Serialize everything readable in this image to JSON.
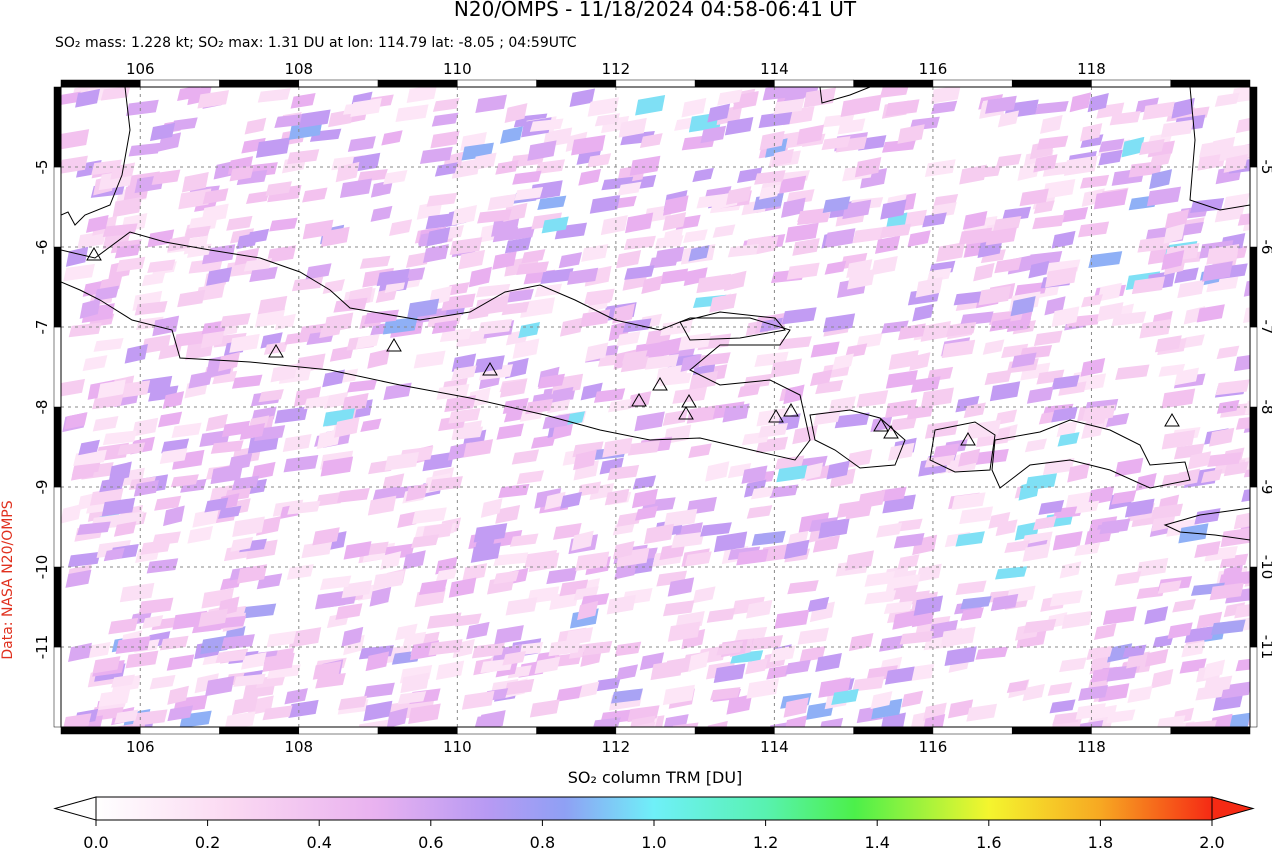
{
  "title": "N20/OMPS - 11/18/2024 04:58-06:41 UT",
  "subtitle": "SO₂ mass: 1.228 kt; SO₂ max: 1.31 DU at lon: 114.79 lat: -8.05 ; 04:59UTC",
  "side_label": "Data: NASA N20/OMPS",
  "map": {
    "xlim": [
      105,
      120
    ],
    "ylim": [
      -12,
      -4
    ],
    "xticks": [
      106,
      108,
      110,
      112,
      114,
      116,
      118
    ],
    "yticks": [
      -5,
      -6,
      -7,
      -8,
      -9,
      -10,
      -11
    ]
  },
  "colorbar": {
    "label": "SO₂ column TRM [DU]",
    "lim": [
      0,
      2
    ],
    "ticks": [
      {
        "value": 0,
        "label": "0.0"
      },
      {
        "value": 0.2,
        "label": "0.2"
      },
      {
        "value": 0.4,
        "label": "0.4"
      },
      {
        "value": 0.6,
        "label": "0.6"
      },
      {
        "value": 0.8,
        "label": "0.8"
      },
      {
        "value": 1,
        "label": "1.0"
      },
      {
        "value": 1.2,
        "label": "1.2"
      },
      {
        "value": 1.4,
        "label": "1.4"
      },
      {
        "value": 1.6,
        "label": "1.6"
      },
      {
        "value": 1.8,
        "label": "1.8"
      },
      {
        "value": 2,
        "label": "2.0"
      }
    ]
  }
}
